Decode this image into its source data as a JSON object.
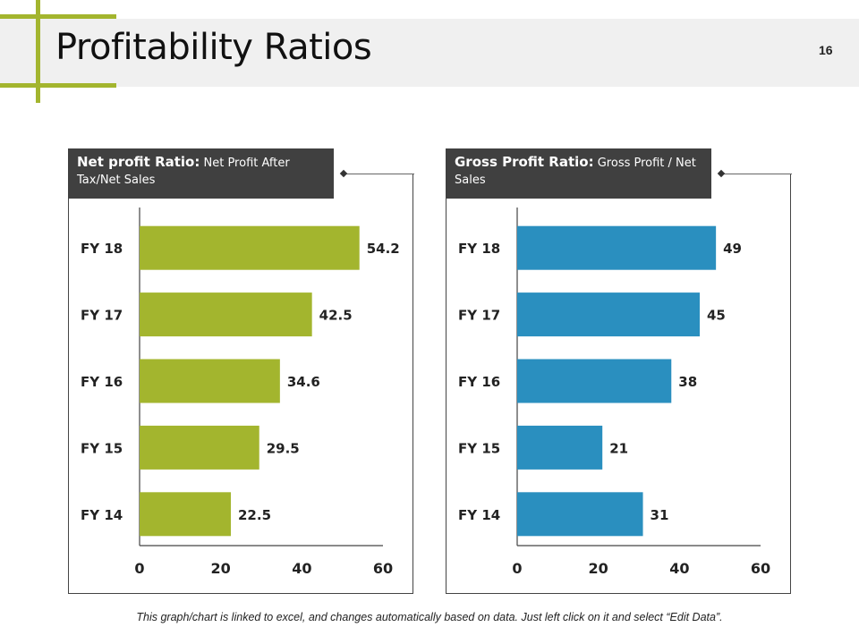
{
  "slide": {
    "title": "Profitability Ratios",
    "page_number": "16",
    "caption": "This graph/chart is linked to excel, and changes automatically based on data. Just left click on it and select “Edit Data”."
  },
  "colors": {
    "accent": "#a3b52e",
    "blue": "#2a8fbf",
    "header_bg": "#404040",
    "title_band": "#f0f0f0"
  },
  "panels": [
    {
      "header_bold": "Net profit Ratio:",
      "header_text": " Net Profit After Tax/Net Sales"
    },
    {
      "header_bold": "Gross Profit Ratio:",
      "header_text": " Gross Profit / Net Sales"
    }
  ],
  "chart_data": [
    {
      "type": "bar",
      "orientation": "horizontal",
      "title": "Net profit Ratio: Net Profit After Tax/Net Sales",
      "categories": [
        "FY 18",
        "FY 17",
        "FY 16",
        "FY 15",
        "FY 14"
      ],
      "values": [
        54.2,
        42.5,
        34.6,
        29.5,
        22.5
      ],
      "value_labels": [
        "54.2",
        "42.5",
        "34.6",
        "29.5",
        "22.5"
      ],
      "color": "#a3b52e",
      "xlim": [
        0,
        60
      ],
      "xticks": [
        "0",
        "20",
        "40",
        "60"
      ],
      "xlabel": "",
      "ylabel": "",
      "grid": false
    },
    {
      "type": "bar",
      "orientation": "horizontal",
      "title": "Gross Profit Ratio: Gross Profit / Net Sales",
      "categories": [
        "FY 18",
        "FY 17",
        "FY 16",
        "FY 15",
        "FY 14"
      ],
      "values": [
        49,
        45,
        38,
        21,
        31
      ],
      "value_labels": [
        "49",
        "45",
        "38",
        "21",
        "31"
      ],
      "color": "#2a8fbf",
      "xlim": [
        0,
        60
      ],
      "xticks": [
        "0",
        "20",
        "40",
        "60"
      ],
      "xlabel": "",
      "ylabel": "",
      "grid": false
    }
  ]
}
